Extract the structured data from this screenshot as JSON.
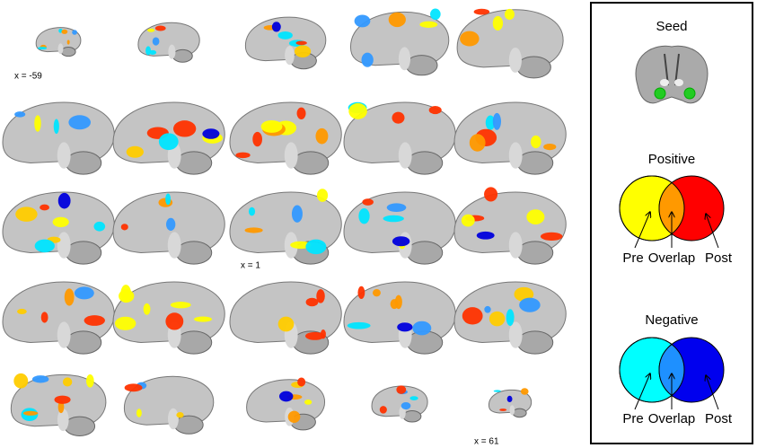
{
  "slice_labels": [
    "x = -59",
    "x = 1",
    "x = 61"
  ],
  "legend": {
    "seed_title": "Seed",
    "positive": {
      "title": "Positive",
      "labels": [
        "Pre",
        "Overlap",
        "Post"
      ]
    },
    "negative": {
      "title": "Negative",
      "labels": [
        "Pre",
        "Overlap",
        "Post"
      ]
    }
  }
}
